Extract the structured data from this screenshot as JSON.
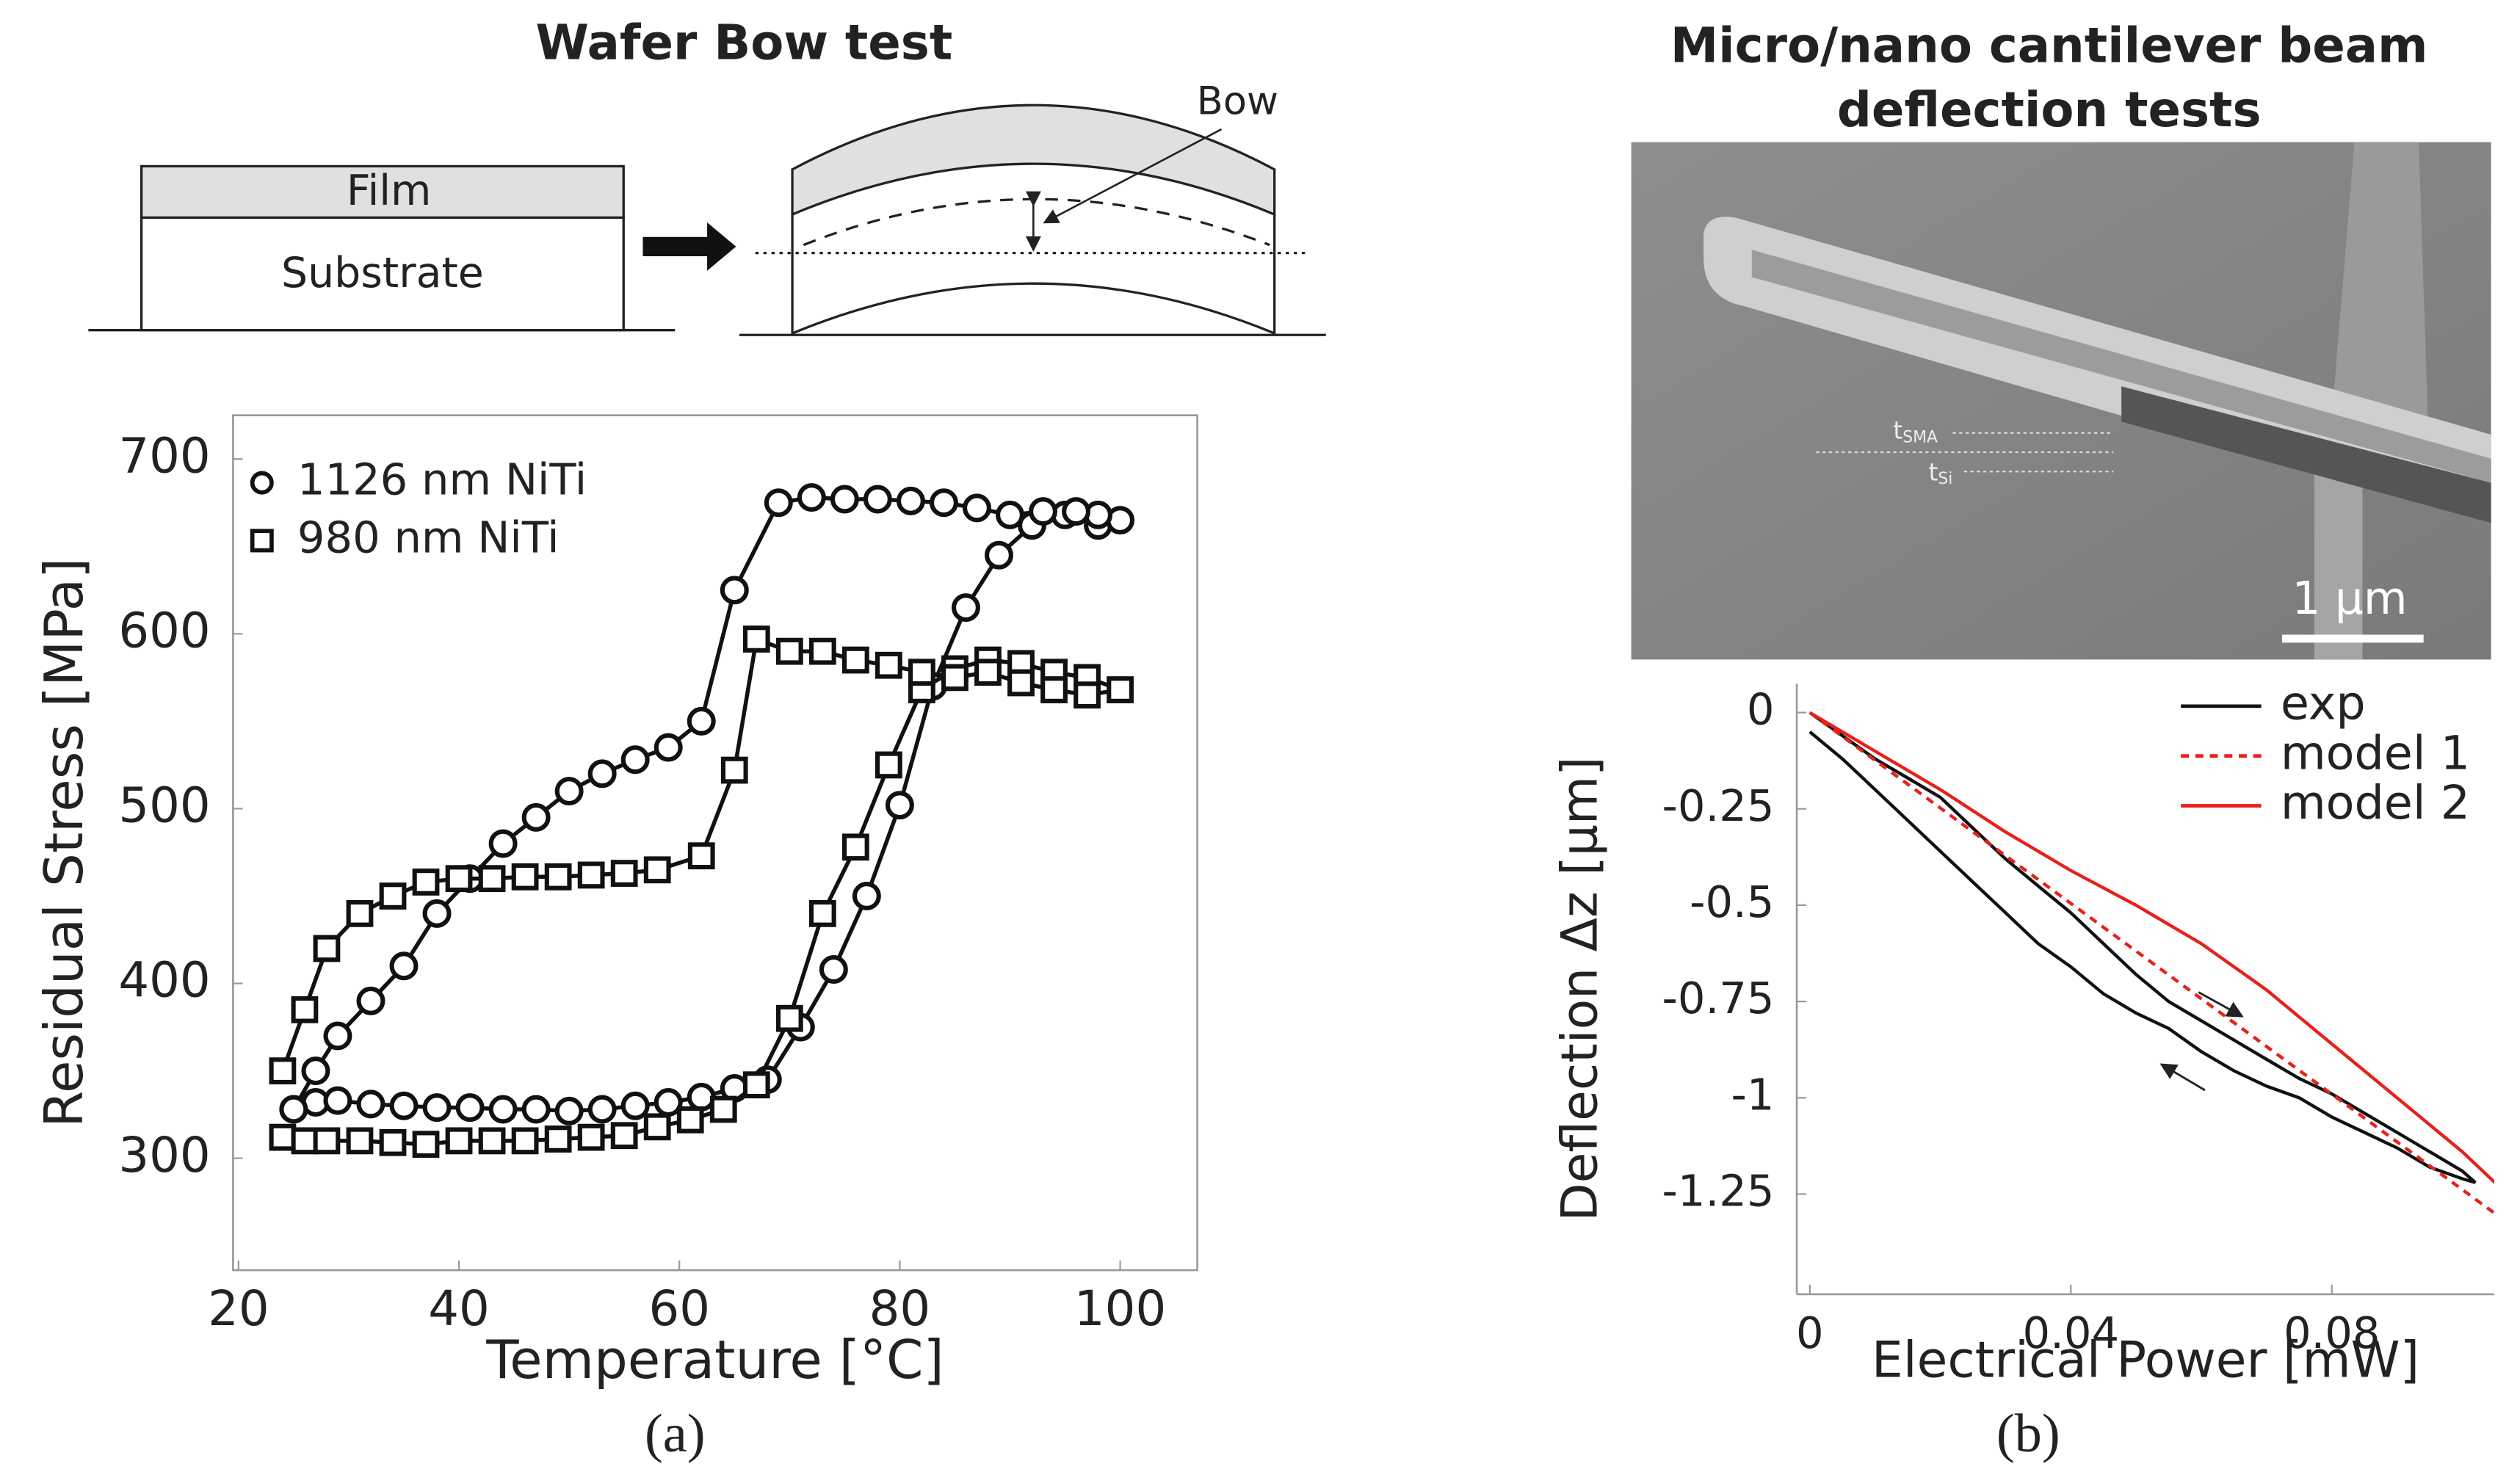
{
  "diagram": {
    "title": "Wafer Bow test",
    "film": "Film",
    "substrate": "Substrate",
    "bow": "Bow"
  },
  "image": {
    "title": [
      "Micro/nano cantilever beam",
      "deflection tests"
    ],
    "labels": [
      {
        "main": "t",
        "sub": "SMA"
      },
      {
        "main": "t",
        "sub": "Si"
      }
    ],
    "scale_bar": "1 µm"
  },
  "panel_labels": [
    "(a)",
    "(b)"
  ],
  "chart_data": [
    {
      "type": "line",
      "x_label": "Temperature [°C]",
      "y_label": "Residual Stress [MPa]",
      "xlim": [
        19.5,
        107
      ],
      "ylim": [
        236,
        725
      ],
      "xticks": [
        20,
        40,
        60,
        80,
        100
      ],
      "yticks": [
        300,
        400,
        500,
        600,
        700
      ],
      "legend": "upper left",
      "series": [
        {
          "name": "1126 nm NiTi",
          "color": "#111111",
          "marker": "circle",
          "linestyle": "solid",
          "x": [
            25,
            27,
            29,
            32,
            35,
            38,
            41,
            44,
            47,
            50,
            53,
            56,
            59,
            62,
            65,
            68,
            71,
            74,
            77,
            80,
            83,
            86,
            89,
            92,
            95,
            98,
            100,
            98,
            96,
            93,
            90,
            87,
            84,
            81,
            78,
            75,
            72,
            69,
            65,
            62,
            59,
            56,
            53,
            50,
            47,
            44,
            41,
            38,
            35,
            32,
            29,
            27,
            25
          ],
          "values": [
            328,
            332,
            333,
            331,
            330,
            329,
            329,
            328,
            328,
            327,
            328,
            330,
            332,
            335,
            340,
            345,
            375,
            408,
            450,
            502,
            570,
            615,
            645,
            662,
            668,
            662,
            665,
            668,
            670,
            670,
            668,
            672,
            675,
            676,
            677,
            677,
            678,
            675,
            625,
            550,
            535,
            528,
            520,
            510,
            495,
            480,
            460,
            440,
            410,
            390,
            370,
            350,
            328
          ]
        },
        {
          "name": "980 nm NiTi",
          "color": "#111111",
          "marker": "square",
          "linestyle": "solid",
          "x": [
            24,
            26,
            28,
            31,
            34,
            37,
            40,
            43,
            46,
            49,
            52,
            55,
            58,
            61,
            64,
            67,
            70,
            73,
            76,
            79,
            82,
            85,
            88,
            91,
            94,
            97,
            100,
            97,
            94,
            91,
            88,
            85,
            82,
            79,
            76,
            73,
            70,
            67,
            65,
            62,
            58,
            55,
            52,
            49,
            46,
            43,
            40,
            37,
            34,
            31,
            28,
            26,
            24
          ],
          "values": [
            312,
            310,
            310,
            310,
            309,
            308,
            310,
            310,
            310,
            311,
            312,
            313,
            318,
            322,
            328,
            342,
            380,
            440,
            478,
            525,
            568,
            580,
            585,
            583,
            578,
            575,
            568,
            565,
            568,
            572,
            578,
            575,
            578,
            582,
            585,
            590,
            590,
            597,
            522,
            473,
            465,
            463,
            462,
            461,
            461,
            460,
            460,
            458,
            450,
            440,
            420,
            385,
            350
          ]
        }
      ]
    },
    {
      "type": "line",
      "x_label": "Electrical Power [mW]",
      "y_label": "Deflection Δz [µm]",
      "xlim": [
        -0.002,
        0.1049
      ],
      "ylim": [
        -1.51,
        0.075
      ],
      "xticks": [
        0,
        0.04,
        0.08
      ],
      "yticks": [
        0,
        -0.25,
        -0.5,
        -0.75,
        -1,
        -1.25
      ],
      "legend": "upper right",
      "series": [
        {
          "name": "exp",
          "color": "#111111",
          "linestyle": "solid",
          "x": [
            0,
            0.005,
            0.01,
            0.015,
            0.02,
            0.025,
            0.03,
            0.035,
            0.04,
            0.045,
            0.05,
            0.055,
            0.06,
            0.065,
            0.07,
            0.075,
            0.08,
            0.085,
            0.09,
            0.095,
            0.1,
            0.102,
            0.1,
            0.095,
            0.09,
            0.085,
            0.08,
            0.075,
            0.07,
            0.065,
            0.06,
            0.055,
            0.05,
            0.045,
            0.04,
            0.035,
            0.03,
            0.025,
            0.02,
            0.015,
            0.01,
            0.005,
            0
          ],
          "values": [
            0,
            -0.06,
            -0.12,
            -0.17,
            -0.22,
            -0.3,
            -0.38,
            -0.45,
            -0.52,
            -0.6,
            -0.68,
            -0.75,
            -0.8,
            -0.85,
            -0.9,
            -0.95,
            -0.99,
            -1.04,
            -1.09,
            -1.14,
            -1.19,
            -1.22,
            -1.21,
            -1.18,
            -1.13,
            -1.09,
            -1.05,
            -1.0,
            -0.97,
            -0.93,
            -0.88,
            -0.82,
            -0.78,
            -0.73,
            -0.66,
            -0.6,
            -0.52,
            -0.44,
            -0.36,
            -0.28,
            -0.2,
            -0.12,
            -0.05
          ]
        },
        {
          "name": "model 1",
          "color": "#e8201a",
          "linestyle": "dashed",
          "x": [
            0,
            0.105
          ],
          "values": [
            0,
            -1.3
          ]
        },
        {
          "name": "model 2",
          "color": "#e8201a",
          "linestyle": "solid",
          "x": [
            0,
            0.01,
            0.02,
            0.03,
            0.04,
            0.05,
            0.06,
            0.07,
            0.08,
            0.09,
            0.1,
            0.105
          ],
          "values": [
            0,
            -0.1,
            -0.2,
            -0.31,
            -0.41,
            -0.5,
            -0.6,
            -0.72,
            -0.86,
            -1.0,
            -1.14,
            -1.22
          ]
        }
      ]
    }
  ]
}
